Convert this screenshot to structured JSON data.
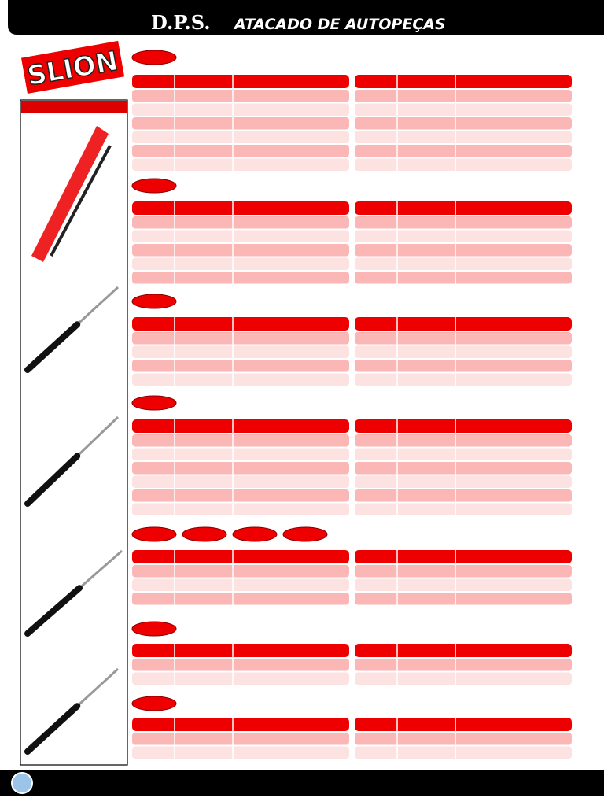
{
  "header": {
    "brand": "D.P.S.",
    "subtitle": "ATACADO DE AUTOPEÇAS"
  },
  "logo": {
    "text": "SLION"
  }
}
